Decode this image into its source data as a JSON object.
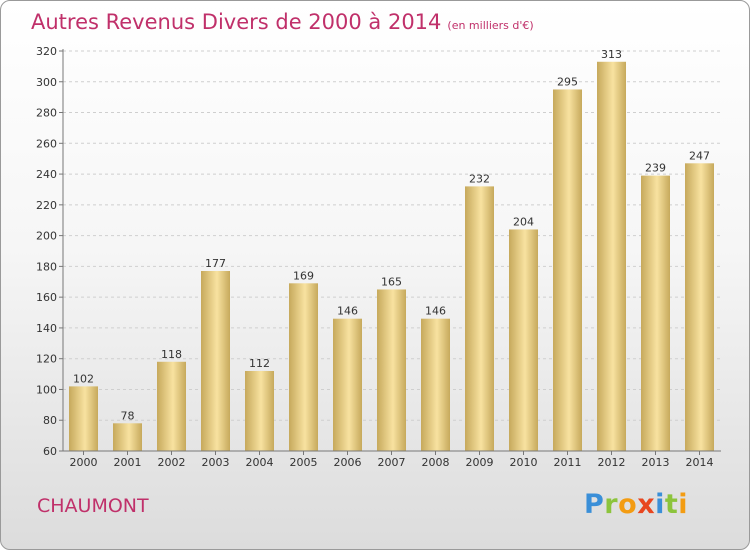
{
  "title": "Autres Revenus Divers de 2000 à 2014",
  "subtitle": "(en milliers d'€)",
  "place": "CHAUMONT",
  "logo": {
    "letters": [
      "P",
      "r",
      "o",
      "x",
      "i",
      "t",
      "i"
    ],
    "colors": [
      "#3a8fd8",
      "#8cc43c",
      "#f39c12",
      "#e8461f",
      "#3a8fd8",
      "#8cc43c",
      "#f39c12"
    ]
  },
  "colors": {
    "accent": "#c0306a",
    "bar_light": "#f8e2a0",
    "bar_dark": "#c6a95c"
  },
  "chart_data": {
    "type": "bar",
    "categories": [
      "2000",
      "2001",
      "2002",
      "2003",
      "2004",
      "2005",
      "2006",
      "2007",
      "2008",
      "2009",
      "2010",
      "2011",
      "2012",
      "2013",
      "2014"
    ],
    "values": [
      102,
      78,
      118,
      177,
      112,
      169,
      146,
      165,
      146,
      232,
      204,
      295,
      313,
      239,
      247
    ],
    "title": "Autres Revenus Divers de 2000 à 2014",
    "ylim": [
      60,
      320
    ],
    "yticks": [
      60,
      80,
      100,
      120,
      140,
      160,
      180,
      200,
      220,
      240,
      260,
      280,
      300,
      320
    ],
    "grid": true,
    "legend": "none"
  }
}
